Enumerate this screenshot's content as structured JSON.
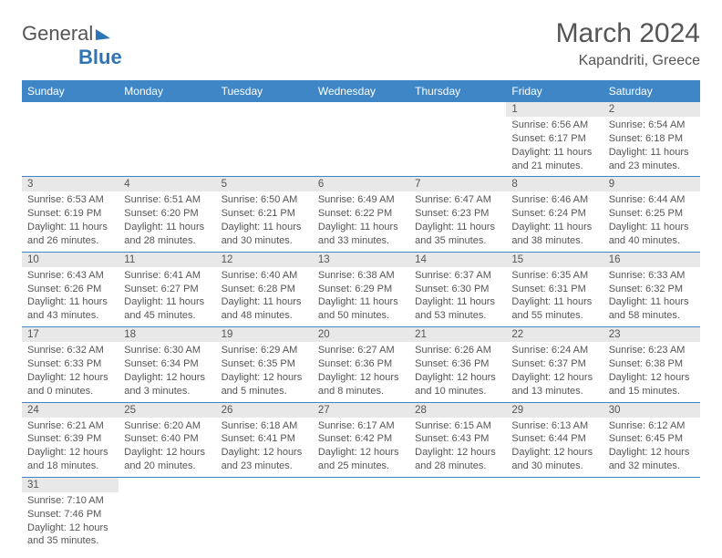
{
  "header": {
    "logo_general": "General",
    "logo_blue": "Blue",
    "month_title": "March 2024",
    "location": "Kapandriti, Greece"
  },
  "weekdays": [
    "Sunday",
    "Monday",
    "Tuesday",
    "Wednesday",
    "Thursday",
    "Friday",
    "Saturday"
  ],
  "colors": {
    "header_bg": "#3e86c6",
    "header_fg": "#ffffff",
    "daynum_bg": "#e8e8e8",
    "border": "#3e86c6",
    "text": "#555555",
    "logo_blue": "#2e75b6"
  },
  "weeks": [
    [
      null,
      null,
      null,
      null,
      null,
      {
        "num": "1",
        "sunrise": "Sunrise: 6:56 AM",
        "sunset": "Sunset: 6:17 PM",
        "daylight": "Daylight: 11 hours and 21 minutes."
      },
      {
        "num": "2",
        "sunrise": "Sunrise: 6:54 AM",
        "sunset": "Sunset: 6:18 PM",
        "daylight": "Daylight: 11 hours and 23 minutes."
      }
    ],
    [
      {
        "num": "3",
        "sunrise": "Sunrise: 6:53 AM",
        "sunset": "Sunset: 6:19 PM",
        "daylight": "Daylight: 11 hours and 26 minutes."
      },
      {
        "num": "4",
        "sunrise": "Sunrise: 6:51 AM",
        "sunset": "Sunset: 6:20 PM",
        "daylight": "Daylight: 11 hours and 28 minutes."
      },
      {
        "num": "5",
        "sunrise": "Sunrise: 6:50 AM",
        "sunset": "Sunset: 6:21 PM",
        "daylight": "Daylight: 11 hours and 30 minutes."
      },
      {
        "num": "6",
        "sunrise": "Sunrise: 6:49 AM",
        "sunset": "Sunset: 6:22 PM",
        "daylight": "Daylight: 11 hours and 33 minutes."
      },
      {
        "num": "7",
        "sunrise": "Sunrise: 6:47 AM",
        "sunset": "Sunset: 6:23 PM",
        "daylight": "Daylight: 11 hours and 35 minutes."
      },
      {
        "num": "8",
        "sunrise": "Sunrise: 6:46 AM",
        "sunset": "Sunset: 6:24 PM",
        "daylight": "Daylight: 11 hours and 38 minutes."
      },
      {
        "num": "9",
        "sunrise": "Sunrise: 6:44 AM",
        "sunset": "Sunset: 6:25 PM",
        "daylight": "Daylight: 11 hours and 40 minutes."
      }
    ],
    [
      {
        "num": "10",
        "sunrise": "Sunrise: 6:43 AM",
        "sunset": "Sunset: 6:26 PM",
        "daylight": "Daylight: 11 hours and 43 minutes."
      },
      {
        "num": "11",
        "sunrise": "Sunrise: 6:41 AM",
        "sunset": "Sunset: 6:27 PM",
        "daylight": "Daylight: 11 hours and 45 minutes."
      },
      {
        "num": "12",
        "sunrise": "Sunrise: 6:40 AM",
        "sunset": "Sunset: 6:28 PM",
        "daylight": "Daylight: 11 hours and 48 minutes."
      },
      {
        "num": "13",
        "sunrise": "Sunrise: 6:38 AM",
        "sunset": "Sunset: 6:29 PM",
        "daylight": "Daylight: 11 hours and 50 minutes."
      },
      {
        "num": "14",
        "sunrise": "Sunrise: 6:37 AM",
        "sunset": "Sunset: 6:30 PM",
        "daylight": "Daylight: 11 hours and 53 minutes."
      },
      {
        "num": "15",
        "sunrise": "Sunrise: 6:35 AM",
        "sunset": "Sunset: 6:31 PM",
        "daylight": "Daylight: 11 hours and 55 minutes."
      },
      {
        "num": "16",
        "sunrise": "Sunrise: 6:33 AM",
        "sunset": "Sunset: 6:32 PM",
        "daylight": "Daylight: 11 hours and 58 minutes."
      }
    ],
    [
      {
        "num": "17",
        "sunrise": "Sunrise: 6:32 AM",
        "sunset": "Sunset: 6:33 PM",
        "daylight": "Daylight: 12 hours and 0 minutes."
      },
      {
        "num": "18",
        "sunrise": "Sunrise: 6:30 AM",
        "sunset": "Sunset: 6:34 PM",
        "daylight": "Daylight: 12 hours and 3 minutes."
      },
      {
        "num": "19",
        "sunrise": "Sunrise: 6:29 AM",
        "sunset": "Sunset: 6:35 PM",
        "daylight": "Daylight: 12 hours and 5 minutes."
      },
      {
        "num": "20",
        "sunrise": "Sunrise: 6:27 AM",
        "sunset": "Sunset: 6:36 PM",
        "daylight": "Daylight: 12 hours and 8 minutes."
      },
      {
        "num": "21",
        "sunrise": "Sunrise: 6:26 AM",
        "sunset": "Sunset: 6:36 PM",
        "daylight": "Daylight: 12 hours and 10 minutes."
      },
      {
        "num": "22",
        "sunrise": "Sunrise: 6:24 AM",
        "sunset": "Sunset: 6:37 PM",
        "daylight": "Daylight: 12 hours and 13 minutes."
      },
      {
        "num": "23",
        "sunrise": "Sunrise: 6:23 AM",
        "sunset": "Sunset: 6:38 PM",
        "daylight": "Daylight: 12 hours and 15 minutes."
      }
    ],
    [
      {
        "num": "24",
        "sunrise": "Sunrise: 6:21 AM",
        "sunset": "Sunset: 6:39 PM",
        "daylight": "Daylight: 12 hours and 18 minutes."
      },
      {
        "num": "25",
        "sunrise": "Sunrise: 6:20 AM",
        "sunset": "Sunset: 6:40 PM",
        "daylight": "Daylight: 12 hours and 20 minutes."
      },
      {
        "num": "26",
        "sunrise": "Sunrise: 6:18 AM",
        "sunset": "Sunset: 6:41 PM",
        "daylight": "Daylight: 12 hours and 23 minutes."
      },
      {
        "num": "27",
        "sunrise": "Sunrise: 6:17 AM",
        "sunset": "Sunset: 6:42 PM",
        "daylight": "Daylight: 12 hours and 25 minutes."
      },
      {
        "num": "28",
        "sunrise": "Sunrise: 6:15 AM",
        "sunset": "Sunset: 6:43 PM",
        "daylight": "Daylight: 12 hours and 28 minutes."
      },
      {
        "num": "29",
        "sunrise": "Sunrise: 6:13 AM",
        "sunset": "Sunset: 6:44 PM",
        "daylight": "Daylight: 12 hours and 30 minutes."
      },
      {
        "num": "30",
        "sunrise": "Sunrise: 6:12 AM",
        "sunset": "Sunset: 6:45 PM",
        "daylight": "Daylight: 12 hours and 32 minutes."
      }
    ],
    [
      {
        "num": "31",
        "sunrise": "Sunrise: 7:10 AM",
        "sunset": "Sunset: 7:46 PM",
        "daylight": "Daylight: 12 hours and 35 minutes."
      },
      null,
      null,
      null,
      null,
      null,
      null
    ]
  ]
}
